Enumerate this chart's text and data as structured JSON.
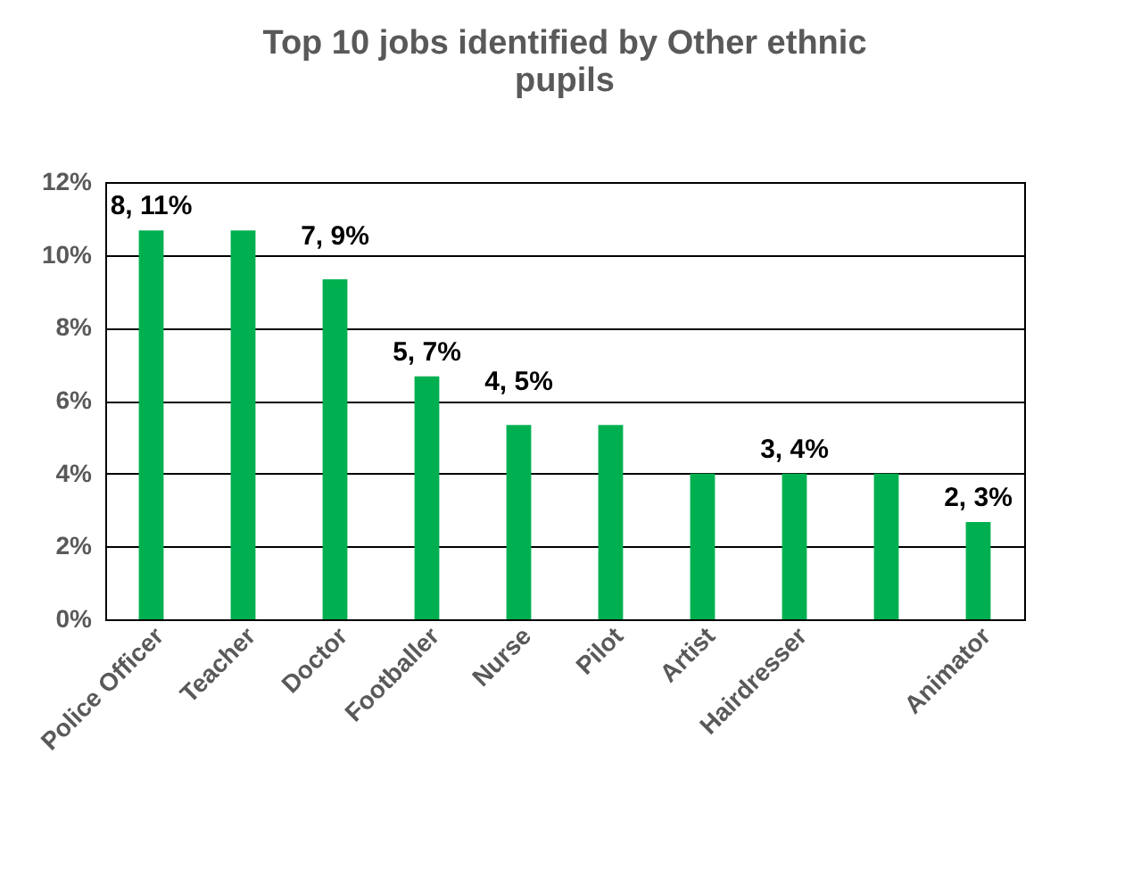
{
  "chart_data": {
    "type": "bar",
    "title": "Top 10 jobs identified by Other ethnic pupils",
    "categories": [
      "Police Officer",
      "Teacher",
      "Doctor",
      "Footballer",
      "Nurse",
      "Pilot",
      "Artist",
      "Hairdresser",
      null,
      "Animator"
    ],
    "values": [
      10.67,
      10.67,
      9.33,
      6.67,
      5.33,
      5.33,
      4,
      4,
      4,
      2.67
    ],
    "value_labels": [
      "8, 11%",
      null,
      "7, 9%",
      "5, 7%",
      "4, 5%",
      null,
      null,
      "3, 4%",
      null,
      "2, 3%"
    ],
    "color": "#00b050",
    "ylim": [
      0,
      12
    ],
    "yticks": [
      {
        "value": 0,
        "label": "0%"
      },
      {
        "value": 2,
        "label": "2%"
      },
      {
        "value": 4,
        "label": "4%"
      },
      {
        "value": 6,
        "label": "6%"
      },
      {
        "value": 8,
        "label": "8%"
      },
      {
        "value": 10,
        "label": "10%"
      },
      {
        "value": 12,
        "label": "12%"
      }
    ],
    "grid": "y"
  }
}
